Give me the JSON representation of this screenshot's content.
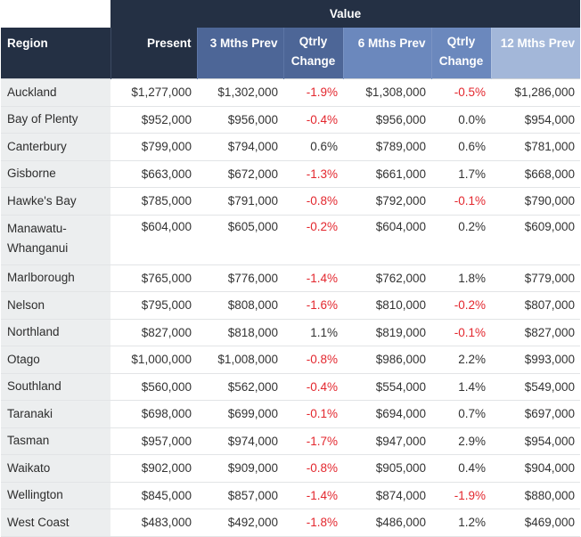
{
  "table": {
    "group_header": "Value",
    "columns": [
      "Region",
      "Present",
      "3 Mths Prev",
      "Qtrly Change",
      "6 Mths Prev",
      "Qtrly Change",
      "12 Mths Prev"
    ],
    "rows": [
      {
        "region": "Auckland",
        "present": "$1,277,000",
        "m3": "$1,302,000",
        "q1": "-1.9%",
        "m6": "$1,308,000",
        "q2": "-0.5%",
        "m12": "$1,286,000"
      },
      {
        "region": "Bay of Plenty",
        "present": "$952,000",
        "m3": "$956,000",
        "q1": "-0.4%",
        "m6": "$956,000",
        "q2": "0.0%",
        "m12": "$954,000"
      },
      {
        "region": "Canterbury",
        "present": "$799,000",
        "m3": "$794,000",
        "q1": "0.6%",
        "m6": "$789,000",
        "q2": "0.6%",
        "m12": "$781,000"
      },
      {
        "region": "Gisborne",
        "present": "$663,000",
        "m3": "$672,000",
        "q1": "-1.3%",
        "m6": "$661,000",
        "q2": "1.7%",
        "m12": "$668,000"
      },
      {
        "region": "Hawke's Bay",
        "present": "$785,000",
        "m3": "$791,000",
        "q1": "-0.8%",
        "m6": "$792,000",
        "q2": "-0.1%",
        "m12": "$790,000"
      },
      {
        "region": "Manawatu-Whanganui",
        "present": "$604,000",
        "m3": "$605,000",
        "q1": "-0.2%",
        "m6": "$604,000",
        "q2": "0.2%",
        "m12": "$609,000"
      },
      {
        "region": "Marlborough",
        "present": "$765,000",
        "m3": "$776,000",
        "q1": "-1.4%",
        "m6": "$762,000",
        "q2": "1.8%",
        "m12": "$779,000"
      },
      {
        "region": "Nelson",
        "present": "$795,000",
        "m3": "$808,000",
        "q1": "-1.6%",
        "m6": "$810,000",
        "q2": "-0.2%",
        "m12": "$807,000"
      },
      {
        "region": "Northland",
        "present": "$827,000",
        "m3": "$818,000",
        "q1": "1.1%",
        "m6": "$819,000",
        "q2": "-0.1%",
        "m12": "$827,000"
      },
      {
        "region": "Otago",
        "present": "$1,000,000",
        "m3": "$1,008,000",
        "q1": "-0.8%",
        "m6": "$986,000",
        "q2": "2.2%",
        "m12": "$993,000"
      },
      {
        "region": "Southland",
        "present": "$560,000",
        "m3": "$562,000",
        "q1": "-0.4%",
        "m6": "$554,000",
        "q2": "1.4%",
        "m12": "$549,000"
      },
      {
        "region": "Taranaki",
        "present": "$698,000",
        "m3": "$699,000",
        "q1": "-0.1%",
        "m6": "$694,000",
        "q2": "0.7%",
        "m12": "$697,000"
      },
      {
        "region": "Tasman",
        "present": "$957,000",
        "m3": "$974,000",
        "q1": "-1.7%",
        "m6": "$947,000",
        "q2": "2.9%",
        "m12": "$954,000"
      },
      {
        "region": "Waikato",
        "present": "$902,000",
        "m3": "$909,000",
        "q1": "-0.8%",
        "m6": "$905,000",
        "q2": "0.4%",
        "m12": "$904,000"
      },
      {
        "region": "Wellington",
        "present": "$845,000",
        "m3": "$857,000",
        "q1": "-1.4%",
        "m6": "$874,000",
        "q2": "-1.9%",
        "m12": "$880,000"
      },
      {
        "region": "West Coast",
        "present": "$483,000",
        "m3": "$492,000",
        "q1": "-1.8%",
        "m6": "$486,000",
        "q2": "1.2%",
        "m12": "$469,000"
      }
    ]
  },
  "colors": {
    "header_dark": "#243044",
    "header_mid": "#4d6697",
    "header_light": "#6b88bd",
    "header_pale": "#a3b7d9",
    "negative": "#e3272e",
    "region_bg": "#eceeef"
  }
}
